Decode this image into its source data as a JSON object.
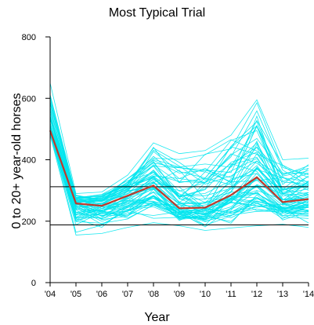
{
  "colors": {
    "trials": "#00e5ee",
    "typical": "#c0392b",
    "axis": "#000000",
    "reference": "#000000"
  },
  "chart_data": {
    "type": "line",
    "title": "Most Typical Trial",
    "xlabel": "Year",
    "ylabel": "0 to 20+ year-old horses",
    "categories": [
      "'04",
      "'05",
      "'06",
      "'07",
      "'08",
      "'09",
      "'10",
      "'11",
      "'12",
      "'13",
      "'14"
    ],
    "ylim": [
      0,
      800
    ],
    "yticks": [
      0,
      200,
      400,
      600,
      800
    ],
    "grid": false,
    "legend": "none",
    "reference_lines": [
      312,
      188
    ],
    "series": [
      {
        "values": [
          495,
          258,
          250,
          283,
          316,
          242,
          244,
          285,
          343,
          262,
          272
        ]
      }
    ],
    "trials_envelope": {
      "min": [
        480,
        155,
        160,
        180,
        195,
        185,
        170,
        178,
        185,
        190,
        180
      ],
      "max": [
        650,
        290,
        295,
        350,
        455,
        420,
        430,
        480,
        595,
        400,
        405
      ]
    }
  }
}
